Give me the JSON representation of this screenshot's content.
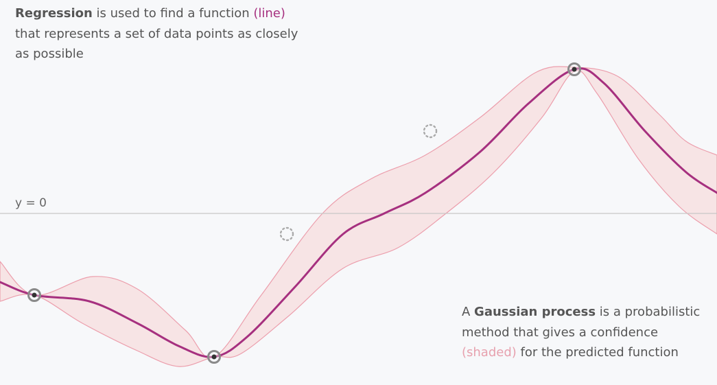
{
  "captions": {
    "regression": {
      "bold": "Regression",
      "pre": " is used to find a function ",
      "highlight": "(line)",
      "post": " that represents a set of data points as closely as possible"
    },
    "gaussian": {
      "pre": "A ",
      "bold": "Gaussian process",
      "mid": " is a probabilistic method that gives a confidence ",
      "highlight": "(shaded)",
      "post": " for the predicted function"
    }
  },
  "zero_label": "y = 0",
  "colors": {
    "background": "#f7f8fa",
    "mean_line": "#a6307f",
    "band_fill": "#f7dede",
    "band_edge": "#ec9eac",
    "axis": "#c8c8c8",
    "observed_point": "#333333",
    "candidate_point": "#aaaaaa"
  },
  "chart_data": {
    "type": "line",
    "observed_points": [
      {
        "x": 50,
        "y": -119
      },
      {
        "x": 312,
        "y": -209
      },
      {
        "x": 837,
        "y": 210
      }
    ],
    "candidate_points": [
      {
        "x": 418,
        "y": -30
      },
      {
        "x": 627,
        "y": 120
      }
    ],
    "mean_line": [
      {
        "x": 0,
        "y": -100
      },
      {
        "x": 50,
        "y": -119
      },
      {
        "x": 130,
        "y": -128
      },
      {
        "x": 200,
        "y": -160
      },
      {
        "x": 260,
        "y": -193
      },
      {
        "x": 312,
        "y": -209
      },
      {
        "x": 360,
        "y": -180
      },
      {
        "x": 430,
        "y": -107
      },
      {
        "x": 500,
        "y": -30
      },
      {
        "x": 560,
        "y": 0
      },
      {
        "x": 620,
        "y": 30
      },
      {
        "x": 700,
        "y": 90
      },
      {
        "x": 770,
        "y": 160
      },
      {
        "x": 837,
        "y": 210
      },
      {
        "x": 880,
        "y": 190
      },
      {
        "x": 940,
        "y": 120
      },
      {
        "x": 1000,
        "y": 60
      },
      {
        "x": 1045,
        "y": 30
      }
    ],
    "band_upper": [
      {
        "x": 0,
        "y": -70
      },
      {
        "x": 50,
        "y": -119
      },
      {
        "x": 135,
        "y": -92
      },
      {
        "x": 200,
        "y": -110
      },
      {
        "x": 270,
        "y": -170
      },
      {
        "x": 312,
        "y": -209
      },
      {
        "x": 380,
        "y": -120
      },
      {
        "x": 470,
        "y": 0
      },
      {
        "x": 540,
        "y": 50
      },
      {
        "x": 620,
        "y": 85
      },
      {
        "x": 700,
        "y": 140
      },
      {
        "x": 780,
        "y": 205
      },
      {
        "x": 837,
        "y": 213
      },
      {
        "x": 900,
        "y": 200
      },
      {
        "x": 960,
        "y": 145
      },
      {
        "x": 1000,
        "y": 105
      },
      {
        "x": 1045,
        "y": 85
      }
    ],
    "band_lower": [
      {
        "x": 0,
        "y": -128
      },
      {
        "x": 50,
        "y": -119
      },
      {
        "x": 120,
        "y": -160
      },
      {
        "x": 200,
        "y": -200
      },
      {
        "x": 260,
        "y": -223
      },
      {
        "x": 312,
        "y": -209
      },
      {
        "x": 350,
        "y": -205
      },
      {
        "x": 420,
        "y": -150
      },
      {
        "x": 500,
        "y": -80
      },
      {
        "x": 580,
        "y": -50
      },
      {
        "x": 650,
        "y": 0
      },
      {
        "x": 720,
        "y": 60
      },
      {
        "x": 790,
        "y": 140
      },
      {
        "x": 837,
        "y": 207
      },
      {
        "x": 870,
        "y": 175
      },
      {
        "x": 930,
        "y": 80
      },
      {
        "x": 990,
        "y": 10
      },
      {
        "x": 1045,
        "y": -30
      }
    ],
    "xlim": [
      0,
      1045
    ],
    "ylim": [
      -250,
      311
    ],
    "zero_line": 0
  }
}
